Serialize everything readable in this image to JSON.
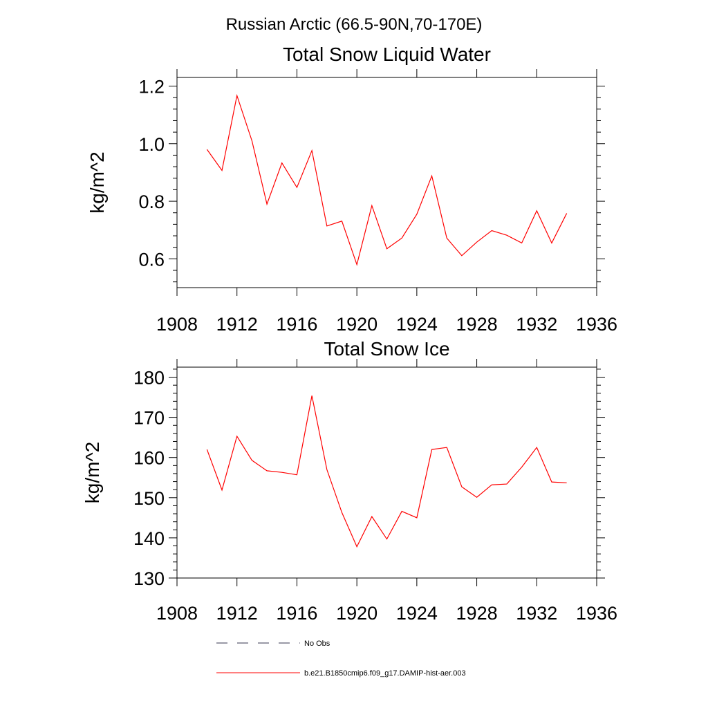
{
  "suptitle": "Russian Arctic (66.5-90N,70-170E)",
  "chart_data": [
    {
      "type": "line",
      "title": "Total Snow Liquid Water",
      "ylabel": "kg/m^2",
      "xlabel": "",
      "xlim": [
        1908,
        1936
      ],
      "ylim": [
        0.5,
        1.23
      ],
      "xticks": [
        1908,
        1912,
        1916,
        1920,
        1924,
        1928,
        1932,
        1936
      ],
      "yticks": [
        0.6,
        0.8,
        1.0,
        1.2
      ],
      "ytick_labels": [
        "0.6",
        "0.8",
        "1.0",
        "1.2"
      ],
      "grid": false,
      "series": [
        {
          "name": "b.e21.B1850cmip6.f09_g17.DAMIP-hist-aer.003",
          "color": "#ff0000",
          "x": [
            1910,
            1911,
            1912,
            1913,
            1914,
            1915,
            1916,
            1917,
            1918,
            1919,
            1920,
            1921,
            1922,
            1923,
            1924,
            1925,
            1926,
            1927,
            1928,
            1929,
            1930,
            1931,
            1932,
            1933,
            1934
          ],
          "y": [
            0.98,
            0.907,
            1.167,
            1.01,
            0.79,
            0.933,
            0.848,
            0.976,
            0.714,
            0.731,
            0.58,
            0.785,
            0.635,
            0.672,
            0.755,
            0.888,
            0.672,
            0.611,
            0.658,
            0.698,
            0.682,
            0.655,
            0.767,
            0.655,
            0.758
          ]
        }
      ]
    },
    {
      "type": "line",
      "title": "Total Snow Ice",
      "ylabel": "kg/m^2",
      "xlabel": "",
      "xlim": [
        1908,
        1936
      ],
      "ylim": [
        130,
        182.5
      ],
      "xticks": [
        1908,
        1912,
        1916,
        1920,
        1924,
        1928,
        1932,
        1936
      ],
      "yticks": [
        130,
        140,
        150,
        160,
        170,
        180
      ],
      "ytick_labels": [
        "130",
        "140",
        "150",
        "160",
        "170",
        "180"
      ],
      "grid": false,
      "series": [
        {
          "name": "b.e21.B1850cmip6.f09_g17.DAMIP-hist-aer.003",
          "color": "#ff0000",
          "x": [
            1910,
            1911,
            1912,
            1913,
            1914,
            1915,
            1916,
            1917,
            1918,
            1919,
            1920,
            1921,
            1922,
            1923,
            1924,
            1925,
            1926,
            1927,
            1928,
            1929,
            1930,
            1931,
            1932,
            1933,
            1934
          ],
          "y": [
            162.0,
            151.9,
            165.3,
            159.3,
            156.7,
            156.3,
            155.7,
            175.4,
            157.0,
            146.3,
            137.8,
            145.3,
            139.7,
            146.6,
            145.0,
            162.0,
            162.5,
            152.7,
            150.1,
            153.2,
            153.4,
            157.6,
            162.5,
            153.9,
            153.7
          ]
        }
      ]
    }
  ],
  "legend": {
    "placement": "bottom",
    "entries": [
      {
        "label": "No Obs",
        "style": "dashed",
        "color": "#33334d"
      },
      {
        "label": "b.e21.B1850cmip6.f09_g17.DAMIP-hist-aer.003",
        "style": "solid",
        "color": "#ff0000"
      }
    ]
  }
}
